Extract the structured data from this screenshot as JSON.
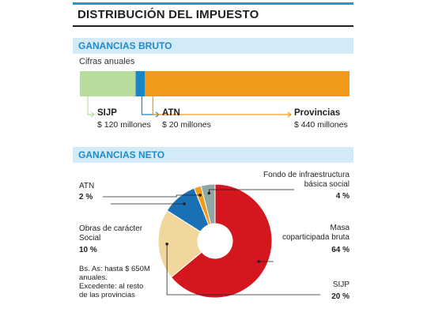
{
  "title": "DISTRIBUCIÓN DEL IMPUESTO",
  "colors": {
    "accent": "#1b9ad6",
    "band": "#d5eaf7",
    "sijp": "#b7dc9c",
    "atn": "#1b85c6",
    "provincias": "#f29a1b",
    "masa": "#d4161f",
    "sijp_neto": "#f2d79d",
    "obras": "#1b6fb5",
    "atn_neto": "#f29a1b",
    "fondo": "#8fa8a3"
  },
  "bruto": {
    "heading": "GANANCIAS BRUTO",
    "subtitle": "Cifras anuales",
    "labels": [
      {
        "name": "SIJP",
        "value": "$ 120 millones"
      },
      {
        "name": "ATN",
        "value": "$ 20 millones"
      },
      {
        "name": "Provincias",
        "value": "$ 440 millones"
      }
    ]
  },
  "neto": {
    "heading": "GANANCIAS NETO",
    "labels": {
      "atn": {
        "name": "ATN",
        "pct": "2 %"
      },
      "obras": {
        "name_line1": "Obras de carácter",
        "name_line2": "Social",
        "pct": "10 %"
      },
      "fondo": {
        "name_line1": "Fondo de infraestructura",
        "name_line2": "básica social",
        "pct": "4 %"
      },
      "masa": {
        "name_line1": "Masa",
        "name_line2": "coparticipada bruta",
        "pct": "64 %"
      },
      "sijp": {
        "name": "SIJP",
        "pct": "20 %"
      }
    },
    "note": [
      "Bs. As: hasta $ 650M",
      "anuales.",
      "Excedente: al resto",
      "de las provincias"
    ]
  },
  "chart_data": [
    {
      "type": "bar",
      "title": "GANANCIAS BRUTO",
      "subtitle": "Cifras anuales",
      "orientation": "horizontal-stacked",
      "categories": [
        "SIJP",
        "ATN",
        "Provincias"
      ],
      "values": [
        120,
        20,
        440
      ],
      "units": "millones de $"
    },
    {
      "type": "pie",
      "title": "GANANCIAS NETO",
      "donut": true,
      "categories": [
        "Masa coparticipada bruta",
        "SIJP",
        "Obras de carácter Social",
        "ATN",
        "Fondo de infraestructura básica social"
      ],
      "values": [
        64,
        20,
        10,
        2,
        4
      ],
      "units": "%"
    }
  ]
}
